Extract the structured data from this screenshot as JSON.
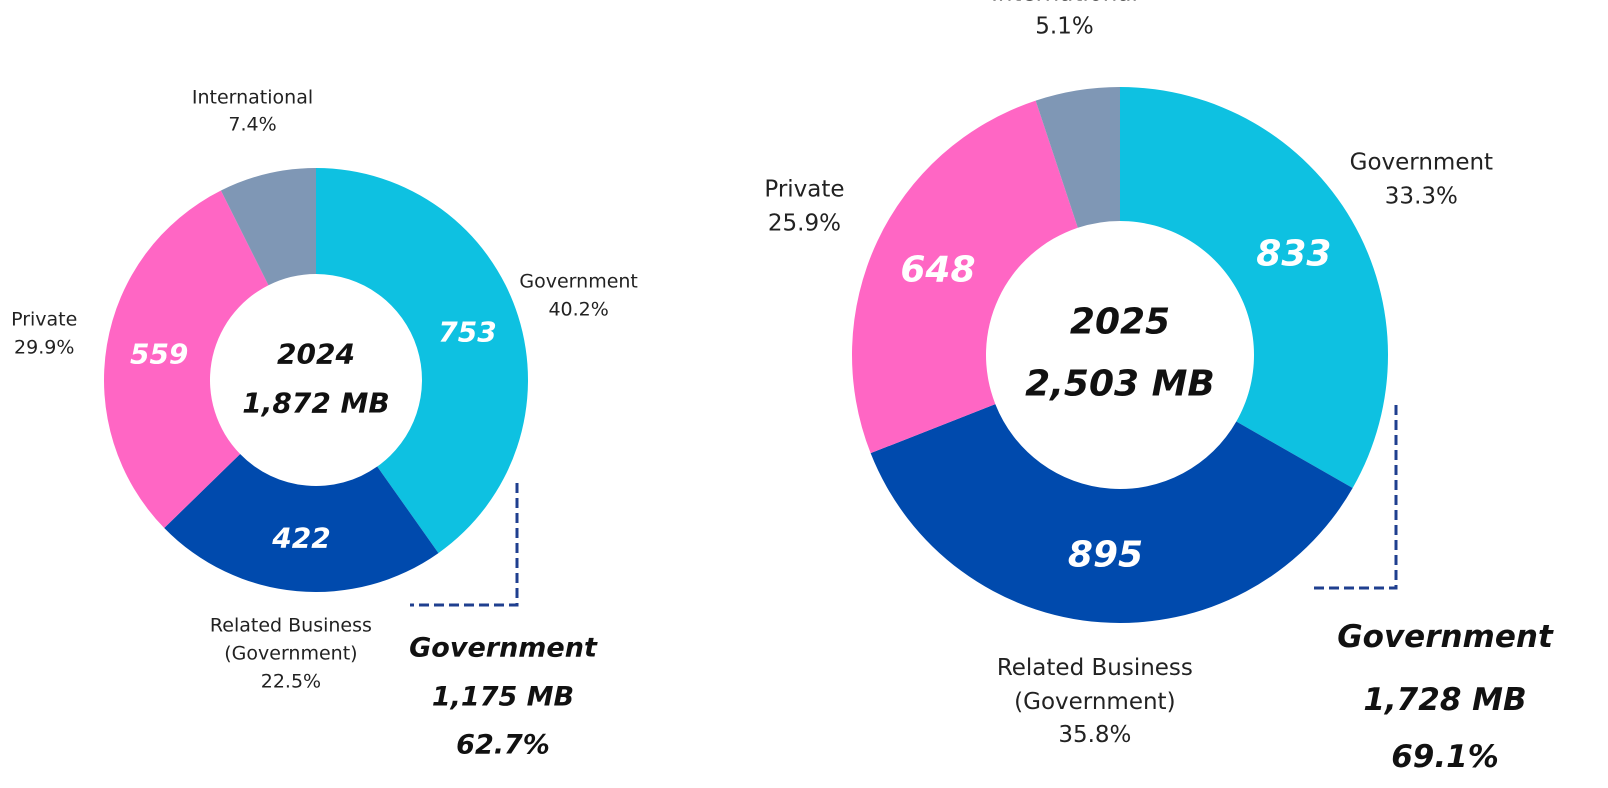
{
  "chart_data": [
    {
      "type": "pie",
      "center_title": "2024",
      "center_total": "1,872 MB",
      "categories": [
        "Government",
        "Related Business (Government)",
        "Private",
        "International"
      ],
      "values": [
        40.2,
        22.5,
        29.9,
        7.4
      ],
      "value_labels": [
        "40.2%",
        "22.5%",
        "29.9%",
        "7.4%"
      ],
      "amounts": [
        753,
        422,
        559,
        null
      ],
      "colors": [
        "#0ec1e1",
        "#004aad",
        "#ff66c4",
        "#7f97b5"
      ],
      "summary": {
        "title": "Government",
        "total": "1,175 MB",
        "share": "62.7%"
      }
    },
    {
      "type": "pie",
      "center_title": "2025",
      "center_total": "2,503 MB",
      "categories": [
        "Government",
        "Related Business (Government)",
        "Private",
        "International"
      ],
      "values": [
        33.3,
        35.8,
        25.9,
        5.1
      ],
      "value_labels": [
        "33.3%",
        "35.8%",
        "25.9%",
        "5.1%"
      ],
      "amounts": [
        833,
        895,
        648,
        null
      ],
      "colors": [
        "#0ec1e1",
        "#004aad",
        "#ff66c4",
        "#7f97b5"
      ],
      "summary": {
        "title": "Government",
        "total": "1,728 MB",
        "share": "69.1%"
      }
    }
  ]
}
